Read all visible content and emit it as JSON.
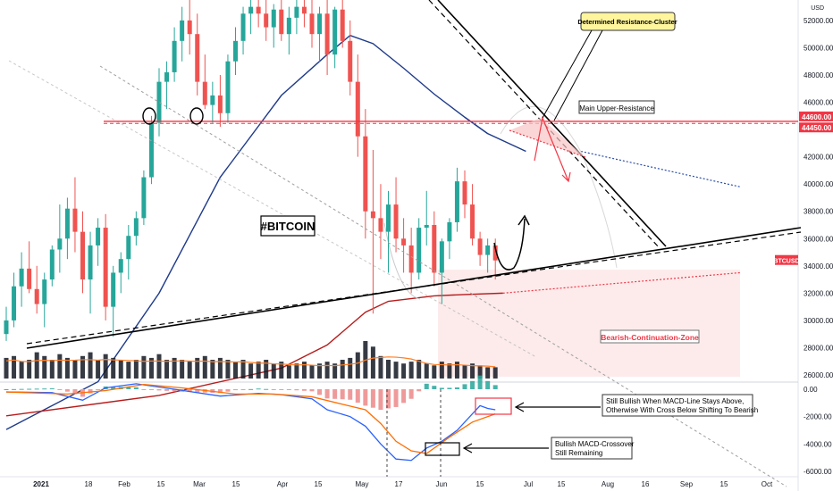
{
  "symbol_tag": "BTCUSD",
  "currency": "USD",
  "title": "#BITCOIN",
  "price_axis": {
    "ticks": [
      52000,
      50000,
      48000,
      46000,
      44000,
      42000,
      40000,
      38000,
      36000,
      34000,
      32000,
      30000,
      28000,
      26000
    ],
    "tick_labels": [
      "52000.00",
      "50000.00",
      "48000.00",
      "46000.00",
      "44000.00",
      "42000.00",
      "40000.00",
      "38000.00",
      "36000.00",
      "34000.00",
      "32000.00",
      "30000.00",
      "28000.00",
      "26000.00"
    ],
    "resistance_labels": [
      {
        "value": 44600,
        "text": "44600.00"
      },
      {
        "value": 44450,
        "text": "44450.00"
      }
    ],
    "current_label": {
      "value": 34400,
      "text": "BTCUSD"
    }
  },
  "macd_axis": {
    "ticks": [
      0,
      -2000,
      -4000,
      -6000
    ],
    "tick_labels": [
      "0.00",
      "-2000.00",
      "-4000.00",
      "-6000.00"
    ]
  },
  "time_axis": {
    "labels": [
      "2021",
      "18",
      "Feb",
      "15",
      "Mar",
      "15",
      "Apr",
      "15",
      "May",
      "17",
      "Jun",
      "15",
      "Jul",
      "15",
      "Aug",
      "16",
      "Sep",
      "15",
      "Oct"
    ]
  },
  "annotations": {
    "determined_resistance": "Determined Resistance-Cluster",
    "main_upper_resistance": "Main Upper-Resistance",
    "bearish_zone": "Bearish-Continuation-Zone",
    "macd_note": [
      "Still Bullish When MACD-Line Stays Above,",
      "Otherwise With Cross Below Shifting To Bearish"
    ],
    "crossover_note": [
      "Bullish MACD-Crossover",
      "Still Remaining"
    ]
  },
  "colors": {
    "up": "#26a69a",
    "down": "#ef5350",
    "resistance": "#f23645",
    "trendline": "#000000",
    "ma_blue": "#1e3a8a",
    "ma_red": "#b71c1c",
    "zone": "#fde8e8",
    "note_bg": "#fff59d",
    "label_bg": "#f23645"
  },
  "chart_data": {
    "type": "candlestick",
    "price_range": [
      26000,
      53500
    ],
    "macd_range": [
      -6500,
      500
    ],
    "candles": [
      [
        29000,
        31000,
        28500,
        30000
      ],
      [
        30000,
        33500,
        29500,
        32500
      ],
      [
        32500,
        35000,
        31000,
        33800
      ],
      [
        33800,
        35800,
        32000,
        32300
      ],
      [
        32300,
        34000,
        30500,
        31200
      ],
      [
        31200,
        33500,
        29500,
        33000
      ],
      [
        33000,
        35500,
        32500,
        35200
      ],
      [
        35200,
        38500,
        33500,
        36000
      ],
      [
        36000,
        39000,
        34500,
        38200
      ],
      [
        38200,
        40500,
        35000,
        36500
      ],
      [
        36500,
        38000,
        32000,
        33000
      ],
      [
        33000,
        36500,
        30500,
        35500
      ],
      [
        35500,
        37500,
        34000,
        36800
      ],
      [
        36800,
        37800,
        30000,
        31000
      ],
      [
        31000,
        34000,
        28800,
        33500
      ],
      [
        33500,
        35000,
        32000,
        34500
      ],
      [
        34500,
        37000,
        33000,
        36200
      ],
      [
        36200,
        38000,
        35500,
        37500
      ],
      [
        37500,
        41000,
        37000,
        40500
      ],
      [
        40500,
        45000,
        40000,
        44500
      ],
      [
        44500,
        48500,
        43500,
        47500
      ],
      [
        47500,
        49000,
        45500,
        48200
      ],
      [
        48200,
        51500,
        47500,
        50500
      ],
      [
        50500,
        53000,
        49000,
        52000
      ],
      [
        52000,
        53500,
        49500,
        51000
      ],
      [
        51000,
        52500,
        46500,
        47500
      ],
      [
        47500,
        49500,
        45500,
        45800
      ],
      [
        45800,
        47500,
        44500,
        46500
      ],
      [
        46500,
        48000,
        44200,
        45200
      ],
      [
        45200,
        49500,
        44500,
        49000
      ],
      [
        49000,
        51500,
        48000,
        50500
      ],
      [
        50500,
        53000,
        49500,
        52500
      ],
      [
        52500,
        53500,
        51000,
        53000
      ],
      [
        53000,
        53500,
        51500,
        52500
      ],
      [
        52500,
        53500,
        50500,
        51500
      ],
      [
        51500,
        53200,
        50000,
        52800
      ],
      [
        52800,
        53500,
        50500,
        51000
      ],
      [
        51000,
        53000,
        49500,
        52200
      ],
      [
        52200,
        53500,
        51000,
        53000
      ],
      [
        53000,
        53500,
        51500,
        52500
      ],
      [
        52500,
        53500,
        50000,
        51000
      ],
      [
        51000,
        53000,
        49000,
        52500
      ],
      [
        52500,
        53500,
        48000,
        49500
      ],
      [
        49500,
        53000,
        48500,
        52800
      ],
      [
        52800,
        53500,
        50000,
        50500
      ],
      [
        50500,
        52000,
        46500,
        47500
      ],
      [
        47500,
        49500,
        42000,
        43500
      ],
      [
        43500,
        45500,
        36000,
        38000
      ],
      [
        38000,
        42500,
        30500,
        37500
      ],
      [
        37500,
        40000,
        34500,
        36500
      ],
      [
        36500,
        39500,
        33500,
        38500
      ],
      [
        38500,
        40500,
        35000,
        36000
      ],
      [
        36000,
        37500,
        33500,
        35500
      ],
      [
        35500,
        36800,
        32000,
        33500
      ],
      [
        33500,
        37500,
        33000,
        36800
      ],
      [
        36800,
        39500,
        35500,
        37000
      ],
      [
        37000,
        38000,
        32500,
        33500
      ],
      [
        33500,
        36000,
        31200,
        35800
      ],
      [
        35800,
        37500,
        34500,
        37200
      ],
      [
        37200,
        41200,
        36500,
        40200
      ],
      [
        40200,
        41000,
        37500,
        38500
      ],
      [
        38500,
        40000,
        35500,
        36000
      ],
      [
        36000,
        36500,
        34000,
        34800
      ],
      [
        34800,
        36000,
        33500,
        35500
      ],
      [
        35500,
        36000,
        33000,
        34400
      ]
    ],
    "volume_heights": [
      0.55,
      0.6,
      0.45,
      0.5,
      0.7,
      0.6,
      0.5,
      0.65,
      0.55,
      0.5,
      0.6,
      0.7,
      0.5,
      0.65,
      0.55,
      0.5,
      0.45,
      0.5,
      0.6,
      0.55,
      0.65,
      0.5,
      0.55,
      0.5,
      0.45,
      0.55,
      0.6,
      0.5,
      0.55,
      0.5,
      0.45,
      0.5,
      0.4,
      0.45,
      0.5,
      0.4,
      0.45,
      0.35,
      0.4,
      0.45,
      0.35,
      0.4,
      0.45,
      0.4,
      0.5,
      0.55,
      0.7,
      1.0,
      0.85,
      0.6,
      0.5,
      0.45,
      0.4,
      0.45,
      0.5,
      0.4,
      0.35,
      0.45,
      0.4,
      0.45,
      0.35,
      0.4,
      0.35,
      0.3,
      0.3
    ],
    "macd_line": [
      [
        0,
        -200
      ],
      [
        6,
        -250
      ],
      [
        10,
        -800
      ],
      [
        13,
        100
      ],
      [
        17,
        400
      ],
      [
        22,
        0
      ],
      [
        28,
        -500
      ],
      [
        33,
        -300
      ],
      [
        36,
        -400
      ],
      [
        40,
        -700
      ],
      [
        42,
        -1500
      ],
      [
        45,
        -2000
      ],
      [
        47,
        -2700
      ],
      [
        49,
        -4000
      ],
      [
        51,
        -5100
      ],
      [
        53,
        -5200
      ],
      [
        55,
        -4300
      ],
      [
        57,
        -3800
      ],
      [
        59,
        -3000
      ],
      [
        61,
        -1800
      ],
      [
        62,
        -1200
      ],
      [
        63,
        -1400
      ],
      [
        64,
        -1500
      ]
    ],
    "signal_line": [
      [
        0,
        -200
      ],
      [
        8,
        -350
      ],
      [
        13,
        -100
      ],
      [
        18,
        350
      ],
      [
        23,
        100
      ],
      [
        30,
        -350
      ],
      [
        35,
        -350
      ],
      [
        40,
        -550
      ],
      [
        44,
        -1100
      ],
      [
        47,
        -1500
      ],
      [
        49,
        -2500
      ],
      [
        51,
        -3800
      ],
      [
        53,
        -4500
      ],
      [
        55,
        -4700
      ],
      [
        58,
        -3500
      ],
      [
        61,
        -2400
      ],
      [
        64,
        -1800
      ]
    ],
    "ma_blue": [
      [
        0,
        22000
      ],
      [
        12,
        25500
      ],
      [
        20,
        32000
      ],
      [
        28,
        40500
      ],
      [
        36,
        46500
      ],
      [
        42,
        49500
      ],
      [
        45,
        50900
      ],
      [
        48,
        50300
      ],
      [
        52,
        48500
      ],
      [
        56,
        46600
      ],
      [
        60,
        44900
      ],
      [
        63,
        43700
      ],
      [
        68,
        42400
      ]
    ],
    "ma_red": [
      [
        0,
        23000
      ],
      [
        20,
        24500
      ],
      [
        36,
        26500
      ],
      [
        42,
        28200
      ],
      [
        47,
        30600
      ],
      [
        50,
        31400
      ],
      [
        56,
        31800
      ],
      [
        60,
        31900
      ],
      [
        65,
        32000
      ],
      [
        92,
        33500
      ]
    ]
  }
}
